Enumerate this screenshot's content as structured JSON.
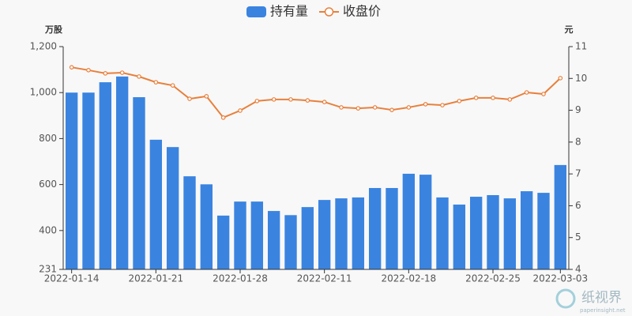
{
  "chart_data": {
    "type": "bar-line",
    "y_label": "万股",
    "y2_label": "元",
    "categories": [
      "2022-01-14",
      null,
      null,
      null,
      null,
      "2022-01-21",
      null,
      null,
      null,
      null,
      "2022-01-28",
      null,
      null,
      null,
      null,
      "2022-02-11",
      null,
      null,
      null,
      null,
      "2022-02-18",
      null,
      null,
      null,
      null,
      "2022-02-25",
      null,
      null,
      null,
      "2022-03-03"
    ],
    "series": [
      {
        "name": "持有量",
        "type": "bar",
        "color": "#3a84e0",
        "values": [
          1000,
          1000,
          1045,
          1070,
          980,
          795,
          763,
          636,
          601,
          465,
          526,
          526,
          485,
          467,
          502,
          533,
          540,
          544,
          585,
          585,
          647,
          643,
          544,
          513,
          547,
          554,
          540,
          571,
          564,
          685
        ]
      },
      {
        "name": "收盘价",
        "type": "line",
        "axis": "y2",
        "color": "#e8803c",
        "values": [
          10.35,
          10.26,
          10.16,
          10.18,
          10.06,
          9.88,
          9.78,
          9.36,
          9.44,
          8.77,
          8.99,
          9.29,
          9.34,
          9.34,
          9.31,
          9.26,
          9.09,
          9.06,
          9.09,
          9.01,
          9.09,
          9.19,
          9.16,
          9.29,
          9.39,
          9.39,
          9.34,
          9.56,
          9.51,
          10.01
        ]
      }
    ],
    "ylim": [
      231,
      1200
    ],
    "yticks": [
      231,
      {
        "value": 400,
        "label": "400"
      },
      600,
      800,
      {
        "value": 1000,
        "label": "1,000"
      },
      {
        "value": 1200,
        "label": "1,200"
      }
    ],
    "y2lim": [
      4,
      11
    ],
    "y2ticks": [
      4,
      5,
      6,
      7,
      8,
      9,
      10,
      11
    ],
    "grid": false,
    "legend": "top"
  },
  "watermark": {
    "brand": "纸视界",
    "site": "paperinsight.net"
  }
}
